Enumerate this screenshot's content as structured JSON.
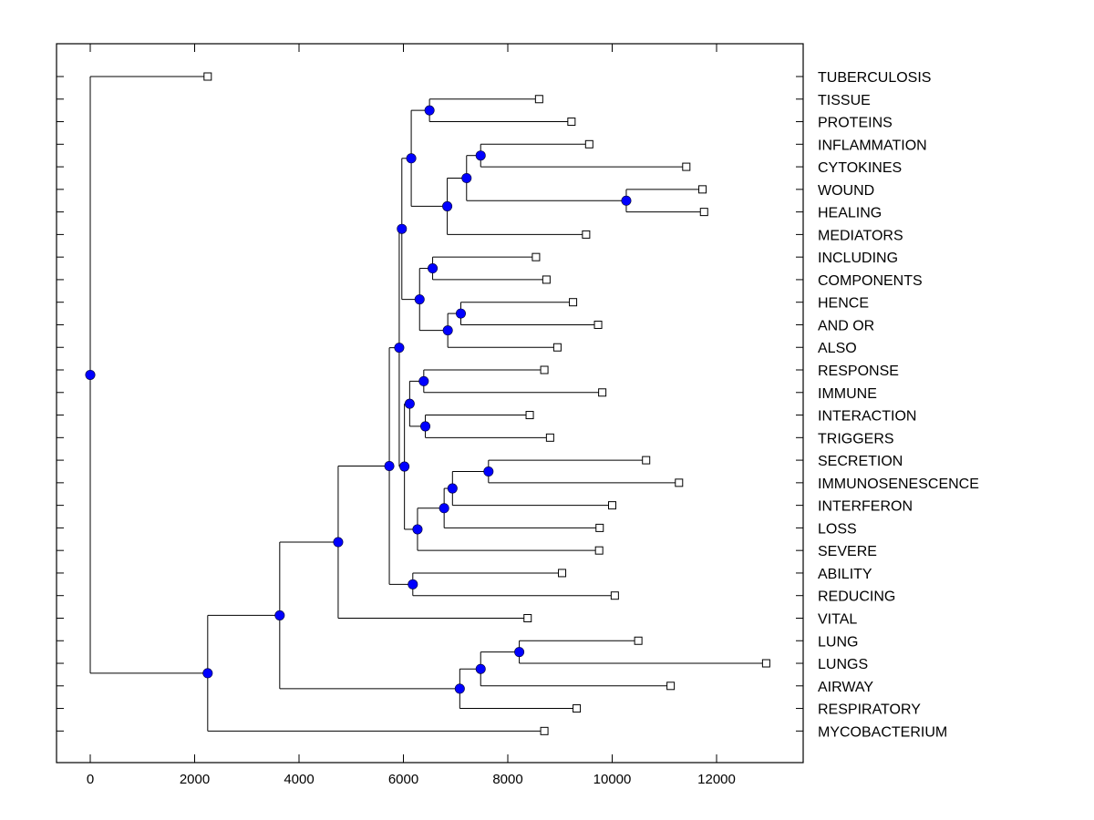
{
  "chart_data": {
    "type": "dendrogram",
    "title": "",
    "xlabel": "",
    "ylabel": "",
    "xlim": [
      -650,
      13650
    ],
    "xticks": [
      0,
      2000,
      4000,
      6000,
      8000,
      10000,
      12000
    ],
    "xtick_labels": [
      "0",
      "2000",
      "4000",
      "6000",
      "8000",
      "10000",
      "12000"
    ],
    "grid": false,
    "node_color": "#0000ff",
    "leaves": [
      {
        "label": "TUBERCULOSIS",
        "x": 2250
      },
      {
        "label": "TISSUE",
        "x": 8600
      },
      {
        "label": "PROTEINS",
        "x": 9220
      },
      {
        "label": "INFLAMMATION",
        "x": 9560
      },
      {
        "label": "CYTOKINES",
        "x": 11420
      },
      {
        "label": "WOUND",
        "x": 11730
      },
      {
        "label": "HEALING",
        "x": 11760
      },
      {
        "label": "MEDIATORS",
        "x": 9500
      },
      {
        "label": "INCLUDING",
        "x": 8540
      },
      {
        "label": "COMPONENTS",
        "x": 8740
      },
      {
        "label": "HENCE",
        "x": 9250
      },
      {
        "label": "AND OR",
        "x": 9730
      },
      {
        "label": "ALSO",
        "x": 8950
      },
      {
        "label": "RESPONSE",
        "x": 8700
      },
      {
        "label": "IMMUNE",
        "x": 9810
      },
      {
        "label": "INTERACTION",
        "x": 8420
      },
      {
        "label": "TRIGGERS",
        "x": 8810
      },
      {
        "label": "SECRETION",
        "x": 10650
      },
      {
        "label": "IMMUNOSENESCENCE",
        "x": 11280
      },
      {
        "label": "INTERFERON",
        "x": 10000
      },
      {
        "label": "LOSS",
        "x": 9760
      },
      {
        "label": "SEVERE",
        "x": 9750
      },
      {
        "label": "ABILITY",
        "x": 9040
      },
      {
        "label": "REDUCING",
        "x": 10050
      },
      {
        "label": "VITAL",
        "x": 8380
      },
      {
        "label": "LUNG",
        "x": 10500
      },
      {
        "label": "LUNGS",
        "x": 12950
      },
      {
        "label": "AIRWAY",
        "x": 11120
      },
      {
        "label": "RESPIRATORY",
        "x": 9320
      },
      {
        "label": "MYCOBACTERIUM",
        "x": 8700
      }
    ],
    "nodes": [
      {
        "id": "n_tp",
        "x": 6500,
        "children": [
          "L1",
          "L2"
        ]
      },
      {
        "id": "n_ic",
        "x": 7480,
        "children": [
          "L3",
          "L4"
        ]
      },
      {
        "id": "n_wh",
        "x": 10270,
        "children": [
          "L5",
          "L6"
        ]
      },
      {
        "id": "n_icwh",
        "x": 7210,
        "children": [
          "n_ic",
          "n_wh"
        ]
      },
      {
        "id": "n_med",
        "x": 6840,
        "children": [
          "n_icwh",
          "L7"
        ]
      },
      {
        "id": "n_f1",
        "x": 6150,
        "children": [
          "n_tp",
          "n_med"
        ]
      },
      {
        "id": "n_incc",
        "x": 6560,
        "children": [
          "L8",
          "L9"
        ]
      },
      {
        "id": "n_ha",
        "x": 7100,
        "children": [
          "L10",
          "L11"
        ]
      },
      {
        "id": "n_haa",
        "x": 6850,
        "children": [
          "n_ha",
          "L12"
        ]
      },
      {
        "id": "n_f2",
        "x": 6310,
        "children": [
          "n_incc",
          "n_haa"
        ]
      },
      {
        "id": "n_f",
        "x": 5970,
        "children": [
          "n_f1",
          "n_f2"
        ]
      },
      {
        "id": "n_ri",
        "x": 6390,
        "children": [
          "L13",
          "L14"
        ]
      },
      {
        "id": "n_it",
        "x": 6420,
        "children": [
          "L15",
          "L16"
        ]
      },
      {
        "id": "n_g1",
        "x": 6120,
        "children": [
          "n_ri",
          "n_it"
        ]
      },
      {
        "id": "n_si",
        "x": 7630,
        "children": [
          "L17",
          "L18"
        ]
      },
      {
        "id": "n_sii",
        "x": 6940,
        "children": [
          "n_si",
          "L19"
        ]
      },
      {
        "id": "n_siil",
        "x": 6780,
        "children": [
          "n_sii",
          "L20"
        ]
      },
      {
        "id": "n_g2",
        "x": 6270,
        "children": [
          "n_siil",
          "L21"
        ]
      },
      {
        "id": "n_g",
        "x": 6020,
        "children": [
          "n_g1",
          "n_g2"
        ]
      },
      {
        "id": "n_e",
        "x": 5920,
        "children": [
          "n_f",
          "n_g"
        ]
      },
      {
        "id": "n_ar",
        "x": 6180,
        "children": [
          "L22",
          "L23"
        ]
      },
      {
        "id": "n_d",
        "x": 5730,
        "children": [
          "n_e",
          "n_ar"
        ]
      },
      {
        "id": "n_c",
        "x": 4750,
        "children": [
          "n_d",
          "L24"
        ]
      },
      {
        "id": "n_ll",
        "x": 8220,
        "children": [
          "L25",
          "L26"
        ]
      },
      {
        "id": "n_lla",
        "x": 7480,
        "children": [
          "n_ll",
          "L27"
        ]
      },
      {
        "id": "n_llar",
        "x": 7080,
        "children": [
          "n_lla",
          "L28"
        ]
      },
      {
        "id": "n_b",
        "x": 3630,
        "children": [
          "n_c",
          "n_llar"
        ]
      },
      {
        "id": "n_a",
        "x": 2250,
        "children": [
          "n_b",
          "L29"
        ]
      },
      {
        "id": "root",
        "x": 0,
        "children": [
          "L0",
          "n_a"
        ]
      }
    ]
  }
}
